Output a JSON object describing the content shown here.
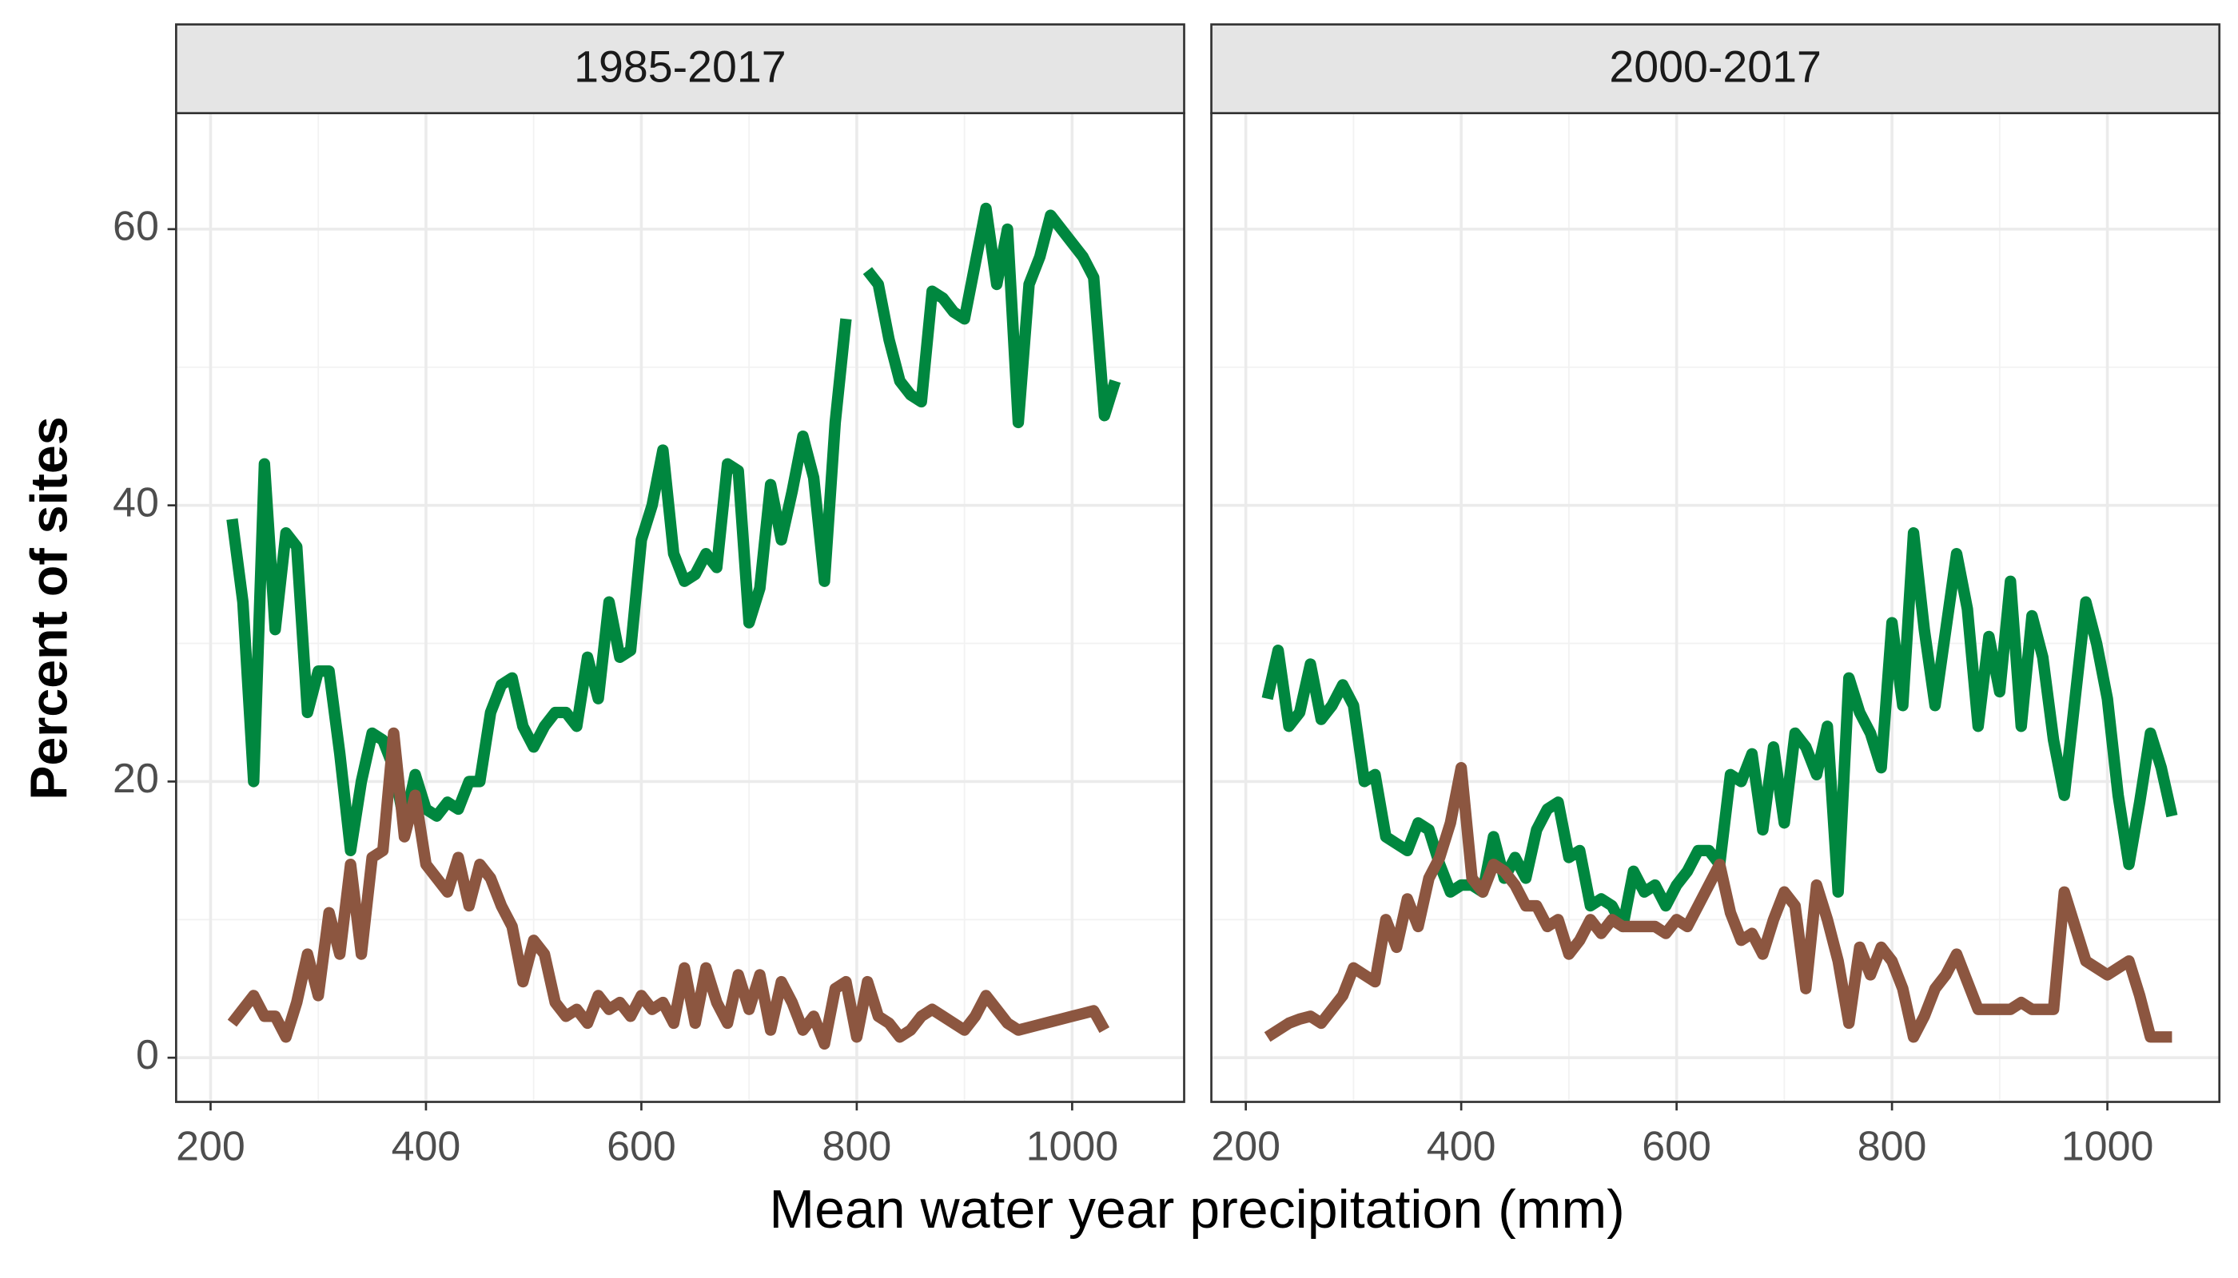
{
  "chart_data": {
    "type": "line",
    "x_label": "Mean water year precipitation (mm)",
    "y_label": "Percent of sites",
    "xlim": [
      168,
      1104
    ],
    "ylim": [
      -3.2,
      68.4
    ],
    "xticks": [
      200,
      400,
      600,
      800,
      1000
    ],
    "yticks": [
      0,
      20,
      40,
      60
    ],
    "xminor": [
      300,
      500,
      700,
      900
    ],
    "yminor": [
      10,
      30,
      50
    ],
    "grid": true,
    "panels": [
      {
        "title": "1985-2017",
        "x": [
          220,
          230,
          240,
          250,
          260,
          270,
          280,
          290,
          300,
          310,
          320,
          330,
          340,
          350,
          360,
          370,
          380,
          390,
          400,
          410,
          420,
          430,
          440,
          450,
          460,
          470,
          480,
          490,
          500,
          510,
          520,
          530,
          540,
          550,
          560,
          570,
          580,
          590,
          600,
          610,
          620,
          630,
          640,
          650,
          660,
          670,
          680,
          690,
          700,
          710,
          720,
          730,
          740,
          750,
          760,
          770,
          780,
          790,
          800,
          810,
          820,
          830,
          840,
          850,
          860,
          870,
          880,
          890,
          900,
          910,
          920,
          930,
          940,
          950,
          960,
          970,
          980,
          990,
          1000,
          1010,
          1020,
          1030,
          1040
        ],
        "series": [
          {
            "color": "#00873f",
            "values": [
              39,
              33,
              20,
              43,
              31,
              38,
              37,
              25,
              28,
              28,
              22,
              15,
              20,
              23.5,
              23,
              21,
              17,
              20.5,
              18,
              17.5,
              18.5,
              18,
              20,
              20,
              25,
              27,
              27.5,
              24,
              22.5,
              24,
              25,
              25,
              24,
              29,
              26,
              33,
              29,
              29.5,
              37.5,
              40,
              44,
              36.5,
              34.5,
              35,
              36.5,
              35.5,
              43,
              42.5,
              31.5,
              34,
              41.5,
              37.5,
              41,
              45,
              42,
              34.5,
              46,
              53.5,
              null,
              57,
              56,
              52,
              49,
              48,
              47.5,
              55.5,
              55,
              54,
              53.5,
              57.5,
              61.5,
              56,
              60,
              46,
              56,
              58,
              61,
              60,
              59,
              58,
              56.5,
              46.5,
              49
            ]
          },
          {
            "color": "#8c5640",
            "values": [
              2.5,
              3.5,
              4.5,
              3,
              3,
              1.5,
              4,
              7.5,
              4.5,
              10.5,
              7.5,
              14,
              7.5,
              14.5,
              15,
              23.5,
              16,
              19,
              14,
              13,
              12,
              14.5,
              11,
              14,
              13,
              11,
              9.5,
              5.5,
              8.5,
              7.5,
              4,
              3,
              3.5,
              2.5,
              4.5,
              3.5,
              4,
              3,
              4.5,
              3.5,
              4,
              2.5,
              6.5,
              2.5,
              6.5,
              4,
              2.5,
              6,
              3.5,
              6,
              2,
              5.5,
              4,
              2,
              3,
              1,
              5,
              5.5,
              1.5,
              5.5,
              3,
              2.5,
              1.5,
              2,
              3,
              3.5,
              3,
              2.5,
              2,
              3,
              4.5,
              3.5,
              2.5,
              2,
              2.2,
              2.4,
              2.6,
              2.8,
              3,
              3.2,
              3.4,
              2,
              null
            ]
          }
        ]
      },
      {
        "title": "2000-2017",
        "x": [
          220,
          230,
          240,
          250,
          260,
          270,
          280,
          290,
          300,
          310,
          320,
          330,
          340,
          350,
          360,
          370,
          380,
          390,
          400,
          410,
          420,
          430,
          440,
          450,
          460,
          470,
          480,
          490,
          500,
          510,
          520,
          530,
          540,
          550,
          560,
          570,
          580,
          590,
          600,
          610,
          620,
          630,
          640,
          650,
          660,
          670,
          680,
          690,
          700,
          710,
          720,
          730,
          740,
          750,
          760,
          770,
          780,
          790,
          800,
          810,
          820,
          830,
          840,
          850,
          860,
          870,
          880,
          890,
          900,
          910,
          920,
          930,
          940,
          950,
          960,
          970,
          980,
          990,
          1000,
          1010,
          1020,
          1030,
          1040,
          1050,
          1060
        ],
        "series": [
          {
            "color": "#00873f",
            "values": [
              26,
              29.5,
              24,
              25,
              28.5,
              24.5,
              25.5,
              27,
              25.5,
              20,
              20.5,
              16,
              15.5,
              15,
              17,
              16.5,
              14,
              12,
              12.5,
              12.5,
              12,
              16,
              13,
              14.5,
              13,
              16.5,
              18,
              18.5,
              14.5,
              15,
              11,
              11.5,
              11,
              9.5,
              13.5,
              12,
              12.5,
              11,
              12.5,
              13.5,
              15,
              15,
              14,
              20.5,
              20,
              22,
              16.5,
              22.5,
              17,
              23.5,
              22.5,
              20.5,
              24,
              12,
              27.5,
              25,
              23.5,
              21,
              31.5,
              25.5,
              38,
              31,
              25.5,
              31,
              36.5,
              32.5,
              24,
              30.5,
              26.5,
              34.5,
              24,
              32,
              29,
              23,
              19,
              26,
              33,
              30,
              26,
              19,
              14,
              18.5,
              23.5,
              21,
              17.5
            ]
          },
          {
            "color": "#8c5640",
            "values": [
              1.5,
              2,
              2.5,
              2.8,
              3,
              2.5,
              3.5,
              4.5,
              6.5,
              6,
              5.5,
              10,
              8,
              11.5,
              9.5,
              13,
              14.5,
              17,
              21,
              13,
              12,
              14,
              13.5,
              12.5,
              11,
              11,
              9.5,
              10,
              7.5,
              8.5,
              10,
              9,
              10,
              9.5,
              9.5,
              9.5,
              9.5,
              9,
              10,
              9.5,
              11,
              12.5,
              14,
              10.5,
              8.5,
              9,
              7.5,
              10,
              12,
              11,
              5,
              12.5,
              10,
              7,
              2.5,
              8,
              6,
              8,
              7,
              5,
              1.5,
              3,
              5,
              6,
              7.5,
              5.5,
              3.5,
              3.5,
              3.5,
              3.5,
              4,
              3.5,
              3.5,
              3.5,
              12,
              9.5,
              7,
              6.5,
              6,
              6.5,
              7,
              4.5,
              1.5,
              1.5,
              1.5
            ]
          }
        ]
      }
    ]
  }
}
